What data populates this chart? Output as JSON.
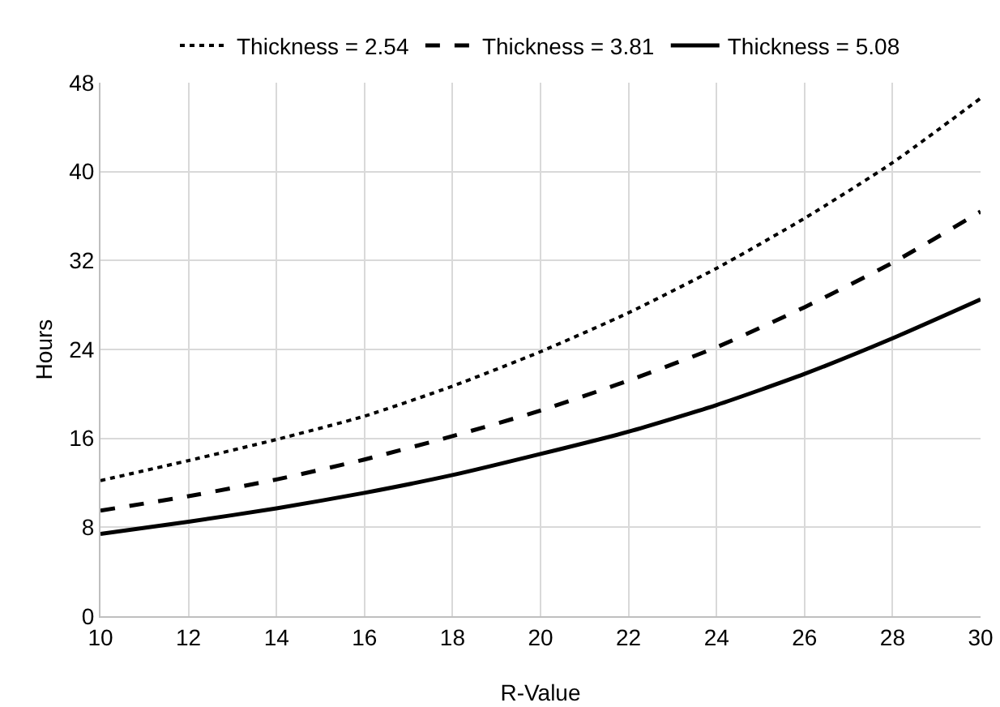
{
  "chart_data": {
    "type": "line",
    "xlabel": "R-Value",
    "ylabel": "Hours",
    "x": [
      10,
      12,
      14,
      16,
      18,
      20,
      22,
      24,
      26,
      28,
      30
    ],
    "series": [
      {
        "name": "Thickness = 2.54",
        "color": "#000000",
        "line_style": "dotted",
        "values": [
          12.2,
          14,
          15.9,
          18,
          20.7,
          23.8,
          27.3,
          31.3,
          35.8,
          40.8,
          46.6
        ]
      },
      {
        "name": "Thickness = 3.81",
        "color": "#000000",
        "line_style": "dashed",
        "values": [
          9.5,
          10.8,
          12.3,
          14.1,
          16.2,
          18.5,
          21.2,
          24.2,
          27.8,
          31.8,
          36.4
        ]
      },
      {
        "name": "Thickness = 5.08",
        "color": "#000000",
        "line_style": "solid",
        "values": [
          7.4,
          8.5,
          9.7,
          11.1,
          12.7,
          14.6,
          16.6,
          19,
          21.8,
          25,
          28.5
        ]
      }
    ],
    "xlim": [
      10,
      30
    ],
    "xticks": [
      10,
      12,
      14,
      16,
      18,
      20,
      22,
      24,
      26,
      28,
      30
    ],
    "ylim": [
      0,
      48
    ],
    "yticks": [
      0,
      8,
      16,
      24,
      32,
      40,
      48
    ],
    "grid": true,
    "legend": "top",
    "marker": "none"
  }
}
